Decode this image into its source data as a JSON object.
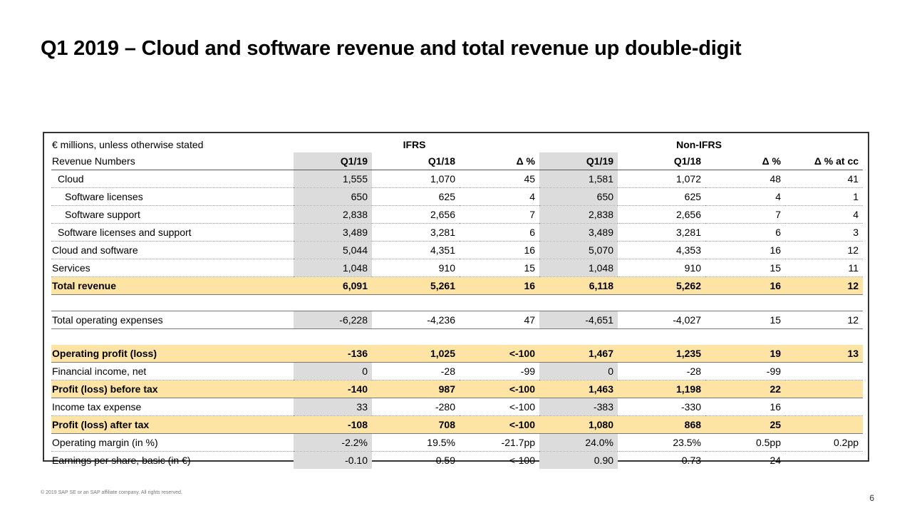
{
  "title": "Q1 2019 – Cloud and software revenue and total revenue up double-digit",
  "table": {
    "unit_note": "€ millions, unless otherwise stated",
    "group_ifrs": "IFRS",
    "group_nonifrs": "Non-IFRS",
    "header": {
      "label": "Revenue Numbers",
      "cols": [
        "Q1/19",
        "Q1/18",
        "Δ %",
        "Q1/19",
        "Q1/18",
        "Δ %",
        "Δ % at cc"
      ]
    },
    "revenue_rows": [
      {
        "label": "Cloud",
        "values": [
          "1,555",
          "1,070",
          "45",
          "1,581",
          "1,072",
          "48",
          "41"
        ]
      },
      {
        "label": "Software licenses",
        "values": [
          "650",
          "625",
          "4",
          "650",
          "625",
          "4",
          "1"
        ]
      },
      {
        "label": "Software support",
        "values": [
          "2,838",
          "2,656",
          "7",
          "2,838",
          "2,656",
          "7",
          "4"
        ]
      },
      {
        "label": "Software licenses and support",
        "values": [
          "3,489",
          "3,281",
          "6",
          "3,489",
          "3,281",
          "6",
          "3"
        ]
      },
      {
        "label": "Cloud and software",
        "values": [
          "5,044",
          "4,351",
          "16",
          "5,070",
          "4,353",
          "16",
          "12"
        ]
      },
      {
        "label": "Services",
        "values": [
          "1,048",
          "910",
          "15",
          "1,048",
          "910",
          "15",
          "11"
        ]
      },
      {
        "label": "Total revenue",
        "values": [
          "6,091",
          "5,261",
          "16",
          "6,118",
          "5,262",
          "16",
          "12"
        ]
      }
    ],
    "expense_row": {
      "label": "Total operating expenses",
      "values": [
        "-6,228",
        "-4,236",
        "47",
        "-4,651",
        "-4,027",
        "15",
        "12"
      ]
    },
    "profit_rows": [
      {
        "label": "Operating profit (loss)",
        "values": [
          "-136",
          "1,025",
          "<-100",
          "1,467",
          "1,235",
          "19",
          "13"
        ]
      },
      {
        "label": "Financial income, net",
        "values": [
          "0",
          "-28",
          "-99",
          "0",
          "-28",
          "-99",
          ""
        ]
      },
      {
        "label": "Profit (loss) before tax",
        "values": [
          "-140",
          "987",
          "<-100",
          "1,463",
          "1,198",
          "22",
          ""
        ]
      },
      {
        "label": "Income tax expense",
        "values": [
          "33",
          "-280",
          "<-100",
          "-383",
          "-330",
          "16",
          ""
        ]
      },
      {
        "label": "Profit (loss) after tax",
        "values": [
          "-108",
          "708",
          "<-100",
          "1,080",
          "868",
          "25",
          ""
        ]
      },
      {
        "label": "Operating margin (in %)",
        "values": [
          "-2.2%",
          "19.5%",
          "-21.7pp",
          "24.0%",
          "23.5%",
          "0.5pp",
          "0.2pp"
        ]
      },
      {
        "label": "Earnings per share, basic (in €)",
        "values": [
          "-0.10",
          "0.59",
          "<-100",
          "0.90",
          "0.73",
          "24",
          ""
        ]
      }
    ]
  },
  "footer": {
    "copyright": "© 2019 SAP SE or an SAP affiliate company. All rights reserved.",
    "page_number": "6"
  }
}
